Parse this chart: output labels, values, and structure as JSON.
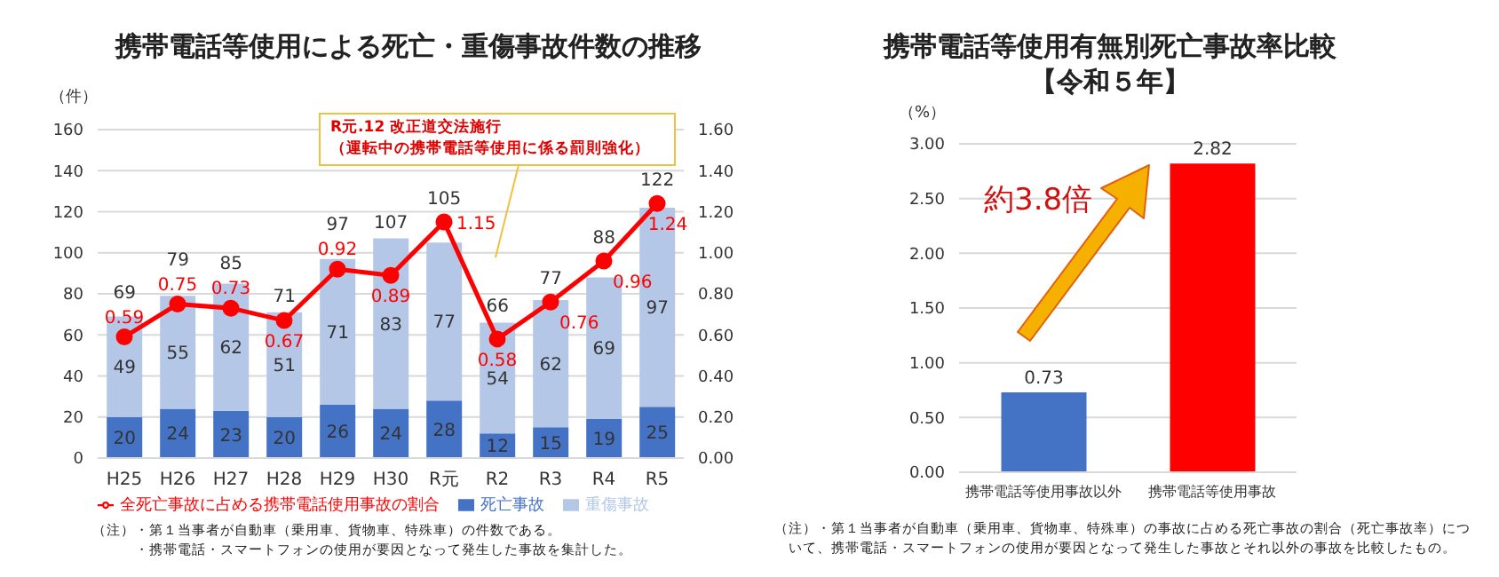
{
  "chart_data": [
    {
      "type": "bar",
      "title": "携帯電話等使用による死亡・重傷事故件数の推移",
      "ylabel": "（件）",
      "categories": [
        "H25",
        "H26",
        "H27",
        "H28",
        "H29",
        "H30",
        "R元",
        "R2",
        "R3",
        "R4",
        "R5"
      ],
      "stacked": true,
      "series": [
        {
          "name": "死亡事故",
          "color": "#4472c4",
          "values": [
            20,
            24,
            23,
            20,
            26,
            24,
            28,
            12,
            15,
            19,
            25
          ]
        },
        {
          "name": "重傷事故",
          "color": "#b4c7e7",
          "values": [
            49,
            55,
            62,
            51,
            71,
            83,
            77,
            54,
            62,
            69,
            97
          ]
        },
        {
          "name": "全死亡事故に占める携帯電話使用事故の割合",
          "type": "line",
          "axis": "y2",
          "color": "#ff0000",
          "values": [
            0.59,
            0.75,
            0.73,
            0.67,
            0.92,
            0.89,
            1.15,
            0.58,
            0.76,
            0.96,
            1.24
          ]
        }
      ],
      "ylim": [
        0,
        160
      ],
      "yticks": [
        0,
        20,
        40,
        60,
        80,
        100,
        120,
        140,
        160
      ],
      "y2lim": [
        0,
        1.6
      ],
      "y2ticks": [
        {
          "value": 0,
          "label": "0.00"
        },
        {
          "value": 0.2,
          "label": "0.20"
        },
        {
          "value": 0.4,
          "label": "0.40"
        },
        {
          "value": 0.6,
          "label": "0.60"
        },
        {
          "value": 0.8,
          "label": "0.80"
        },
        {
          "value": 1,
          "label": "1.00"
        },
        {
          "value": 1.2,
          "label": "1.20"
        },
        {
          "value": 1.4,
          "label": "1.40"
        },
        {
          "value": 1.6,
          "label": "1.60"
        }
      ],
      "grid": "y",
      "legend": "bottom",
      "marker": "circle",
      "line_style": "solid",
      "data_labels": true,
      "totals": [
        "69",
        "79",
        "85",
        "71",
        "97",
        "107",
        "105",
        "66",
        "77",
        "88",
        "122"
      ],
      "annotations": [
        "R元.12 改正道交法施行",
        "（運転中の携帯電話等使用に係る罰則強化）",
        "（注）・第１当事者が自動車（乗用車、貨物車、特殊車）の件数である。",
        "　　　・携帯電話・スマートフォンの使用が要因となって発生した事故を集計した。"
      ]
    },
    {
      "type": "bar",
      "title": "携帯電話等使用有無別死亡事故率比較【令和５年】",
      "ylabel": "（%）",
      "categories": [
        "携帯電話等使用事故以外",
        "携帯電話等使用事故"
      ],
      "values": [
        0.73,
        2.82
      ],
      "colors": [
        "#4472c4",
        "#ff0000"
      ],
      "ylim": [
        0,
        3
      ],
      "yticks": [
        {
          "value": 0,
          "label": "0.00"
        },
        {
          "value": 0.5,
          "label": "0.50"
        },
        {
          "value": 1,
          "label": "1.00"
        },
        {
          "value": 1.5,
          "label": "1.50"
        },
        {
          "value": 2,
          "label": "2.00"
        },
        {
          "value": 2.5,
          "label": "2.50"
        },
        {
          "value": 3,
          "label": "3.00"
        }
      ],
      "grid": "y",
      "data_labels": true,
      "annotations": [
        "約3.8倍",
        "（注）・第１当事者が自動車（乗用車、貨物車、特殊車）の事故に占める死亡事故の割合（死亡事故率）につ",
        "　いて、携帯電話・スマートフォンの使用が要因となって発生した事故とそれ以外の事故を比較したもの。"
      ]
    }
  ]
}
